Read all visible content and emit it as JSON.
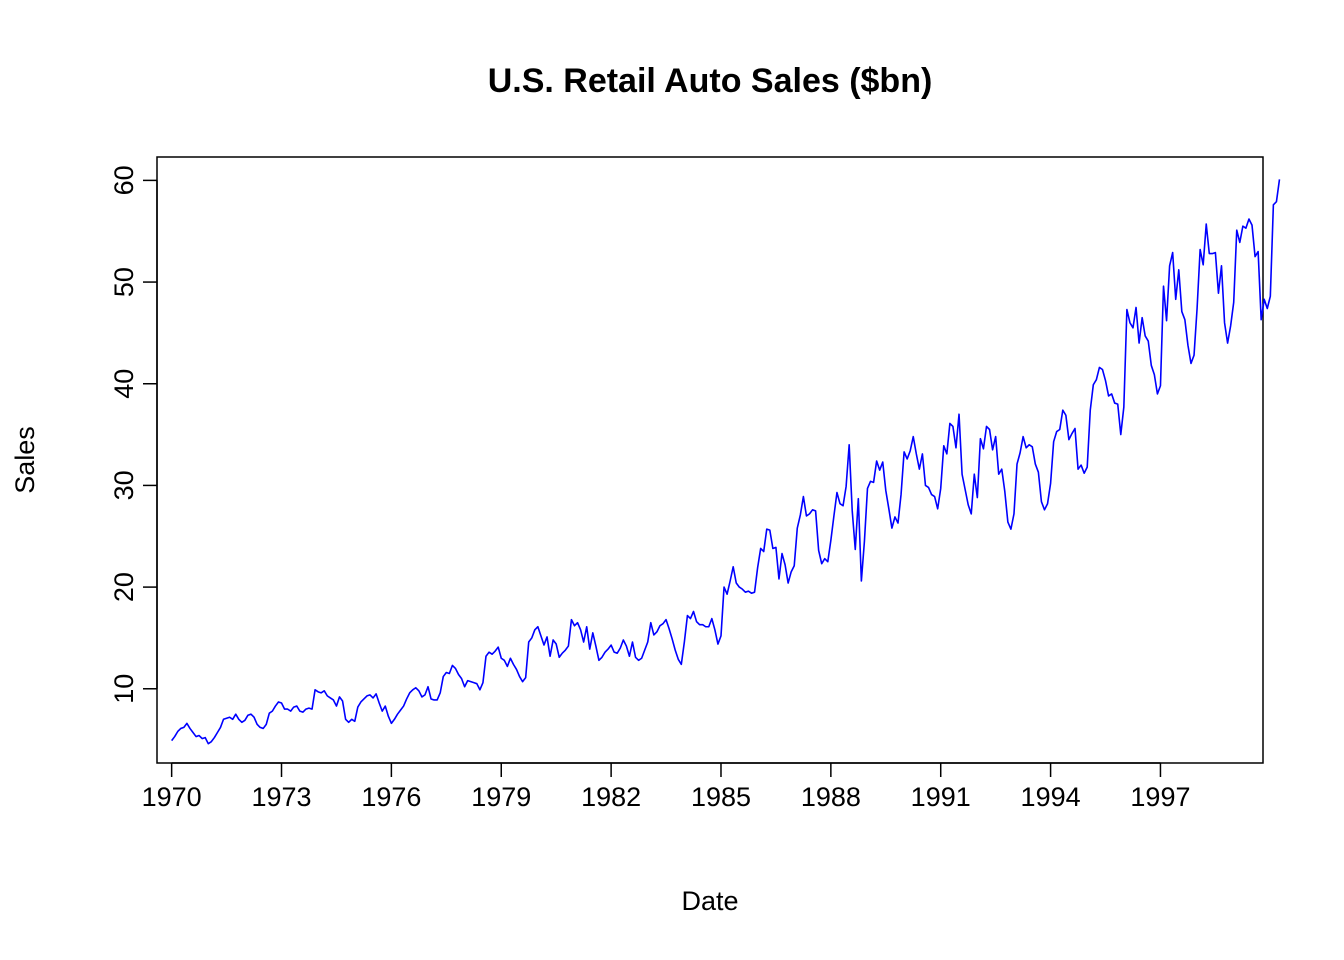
{
  "chart_data": {
    "type": "line",
    "title": "U.S. Retail Auto Sales ($bn)",
    "xlabel": "Date",
    "ylabel": "Sales",
    "xlim": [
      1969.6,
      1999.8
    ],
    "ylim": [
      2.7,
      62.3
    ],
    "x_ticks": [
      1970,
      1973,
      1976,
      1979,
      1982,
      1985,
      1988,
      1991,
      1994,
      1997
    ],
    "x_tick_labels": [
      "1970",
      "1973",
      "1976",
      "1979",
      "1982",
      "1985",
      "1988",
      "1991",
      "1994",
      "1997"
    ],
    "y_ticks": [
      10,
      20,
      30,
      40,
      50,
      60
    ],
    "y_tick_labels": [
      "10",
      "20",
      "30",
      "40",
      "50",
      "60"
    ],
    "grid": false,
    "line_color": "#0000ff",
    "series": [
      {
        "x_start": 1970.0,
        "x_step_months": 1,
        "values": [
          4.9,
          5.3,
          5.8,
          6.1,
          6.2,
          6.6,
          6.1,
          5.7,
          5.3,
          5.4,
          5.1,
          5.2,
          4.6,
          4.8,
          5.2,
          5.7,
          6.2,
          7.0,
          7.1,
          7.2,
          7.0,
          7.5,
          7.0,
          6.7,
          6.9,
          7.4,
          7.5,
          7.2,
          6.5,
          6.2,
          6.1,
          6.5,
          7.6,
          7.8,
          8.3,
          8.7,
          8.6,
          8.0,
          8.0,
          7.8,
          8.2,
          8.3,
          7.8,
          7.7,
          8.0,
          8.1,
          8.0,
          9.9,
          9.7,
          9.6,
          9.8,
          9.3,
          9.1,
          8.9,
          8.3,
          9.2,
          8.8,
          7.0,
          6.7,
          7.0,
          6.8,
          8.2,
          8.7,
          9.0,
          9.3,
          9.4,
          9.1,
          9.5,
          8.6,
          7.8,
          8.3,
          7.3,
          6.6,
          7.0,
          7.5,
          7.9,
          8.3,
          9.0,
          9.6,
          9.9,
          10.1,
          9.8,
          9.2,
          9.4,
          10.2,
          9.0,
          8.9,
          8.9,
          9.6,
          11.2,
          11.6,
          11.5,
          12.3,
          12.0,
          11.4,
          11.0,
          10.2,
          10.8,
          10.7,
          10.6,
          10.5,
          9.9,
          10.6,
          13.2,
          13.6,
          13.4,
          13.7,
          14.1,
          13.0,
          12.8,
          12.2,
          13.0,
          12.4,
          11.9,
          11.2,
          10.7,
          11.1,
          14.6,
          15.0,
          15.8,
          16.1,
          15.2,
          14.3,
          15.1,
          13.2,
          14.8,
          14.4,
          13.1,
          13.5,
          13.8,
          14.2,
          16.8,
          16.2,
          16.5,
          15.8,
          14.6,
          16.1,
          13.9,
          15.5,
          14.2,
          12.8,
          13.1,
          13.6,
          13.9,
          14.3,
          13.6,
          13.5,
          14.0,
          14.8,
          14.2,
          13.2,
          14.6,
          13.1,
          12.8,
          13.0,
          13.8,
          14.6,
          16.5,
          15.3,
          15.6,
          16.2,
          16.4,
          16.8,
          15.9,
          14.9,
          13.8,
          12.9,
          12.4,
          14.6,
          17.2,
          16.9,
          17.6,
          16.6,
          16.3,
          16.3,
          16.1,
          16.1,
          16.9,
          15.8,
          14.4,
          15.2,
          20.0,
          19.3,
          20.6,
          22.0,
          20.4,
          20.0,
          19.8,
          19.5,
          19.6,
          19.4,
          19.5,
          21.9,
          23.8,
          23.5,
          25.7,
          25.6,
          23.8,
          23.9,
          20.8,
          23.3,
          22.2,
          20.4,
          21.5,
          22.1,
          25.8,
          27.1,
          28.9,
          27.0,
          27.2,
          27.6,
          27.5,
          23.6,
          22.3,
          22.8,
          22.5,
          24.6,
          27.0,
          29.3,
          28.2,
          28.0,
          29.9,
          34.0,
          27.5,
          23.7,
          28.7,
          20.6,
          24.5,
          29.7,
          30.4,
          30.3,
          32.4,
          31.5,
          32.3,
          29.5,
          27.7,
          25.8,
          26.9,
          26.3,
          29.1,
          33.3,
          32.6,
          33.4,
          34.8,
          33.1,
          31.6,
          33.1,
          30.0,
          29.8,
          29.1,
          28.9,
          27.7,
          29.7,
          33.9,
          33.1,
          36.1,
          35.8,
          33.7,
          37.0,
          31.1,
          29.6,
          28.1,
          27.2,
          31.1,
          28.8,
          34.6,
          33.6,
          35.8,
          35.5,
          33.5,
          34.8,
          31.1,
          31.6,
          29.4,
          26.4,
          25.7,
          27.2,
          32.1,
          33.2,
          34.8,
          33.7,
          34.0,
          33.8,
          32.1,
          31.3,
          28.4,
          27.6,
          28.2,
          30.2,
          34.3,
          35.3,
          35.5,
          37.4,
          36.9,
          34.5,
          35.1,
          35.6,
          31.6,
          32.0,
          31.2,
          31.8,
          37.4,
          39.9,
          40.4,
          41.6,
          41.4,
          40.3,
          38.8,
          39.0,
          38.1,
          38.0,
          35.0,
          37.7,
          47.3,
          46.0,
          45.5,
          47.5,
          44.0,
          46.5,
          44.7,
          44.2,
          41.8,
          40.9,
          39.0,
          39.8,
          49.6,
          46.2,
          51.6,
          52.9,
          48.3,
          51.2,
          47.1,
          46.3,
          43.8,
          42.0,
          42.8,
          47.4,
          53.2,
          51.7,
          55.7,
          52.8,
          52.8,
          52.9,
          48.9,
          51.6,
          46.0,
          44.0,
          45.7,
          48.0,
          55.1,
          53.9,
          55.5,
          55.3,
          56.2,
          55.6,
          52.5,
          53.0,
          46.3,
          48.3,
          47.4,
          48.6,
          57.6,
          57.9,
          60.1
        ]
      }
    ]
  }
}
